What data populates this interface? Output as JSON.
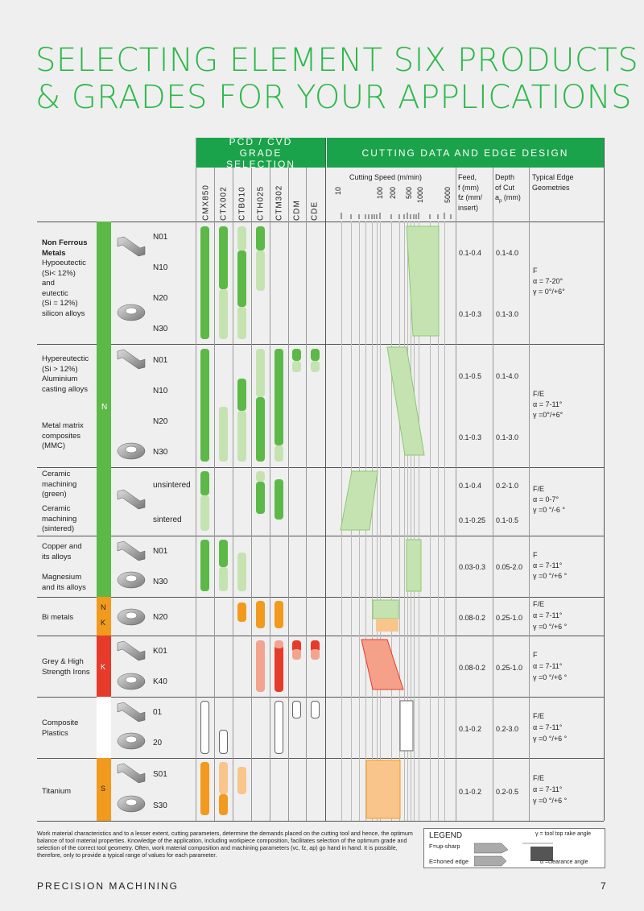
{
  "title_line1": "SELECTING ELEMENT SIX PRODUCTS",
  "title_line2": "& GRADES FOR YOUR APPLICATIONS",
  "header_grade": "PCD / CVD GRADE SELECTION",
  "header_cutting": "CUTTING DATA AND EDGE DESIGN",
  "grades": [
    "CMX850",
    "CTX002",
    "CTB010",
    "CTH025",
    "CTM302",
    "CDM",
    "CDE"
  ],
  "speed_label": "Cutting Speed (m/min)",
  "speed_ticks": [
    "10",
    "100",
    "200",
    "500",
    "1000",
    "5000"
  ],
  "feed_label": [
    "Feed,",
    "f (mm)",
    "fz (mm/",
    "insert)"
  ],
  "depth_label": [
    "Depth",
    "of Cut",
    "a",
    "p",
    " (mm)"
  ],
  "edge_label": [
    "Typical Edge",
    "Geometries"
  ],
  "rows": {
    "r1": {
      "mat": [
        "Non Ferrous",
        "Metals",
        "Hypoeutectic",
        "(Si< 12%)",
        "and",
        "eutectic",
        "(Si = 12%)",
        "silicon alloys"
      ],
      "codes": [
        "N01",
        "N10",
        "N20",
        "N30"
      ],
      "feed": [
        "0.1-0.4",
        "0.1-0.3"
      ],
      "depth": [
        "0.1-4.0",
        "0.1-3.0"
      ],
      "edge": [
        "F",
        "α = 7-20°",
        "γ = 0°/+6°"
      ]
    },
    "r2": {
      "mat1": [
        "Hypereutectic",
        "(Si > 12%)",
        "Aluminium",
        "casting alloys"
      ],
      "mat2": [
        "Metal matrix",
        "composites",
        "(MMC)"
      ],
      "codes": [
        "N01",
        "N10",
        "N20",
        "N30"
      ],
      "feed": [
        "0.1-0.5",
        "0.1-0.3"
      ],
      "depth": [
        "0.1-4.0",
        "0.1-3.0"
      ],
      "edge": [
        "F/E",
        "α = 7-11°",
        "γ =0°/+6°"
      ]
    },
    "r3": {
      "mat1": [
        "Ceramic",
        "machining",
        "(green)"
      ],
      "mat2": [
        "Ceramic",
        "machining",
        "(sintered)"
      ],
      "codes": [
        "unsintered",
        "sintered"
      ],
      "feed": [
        "0.1-0.4",
        "0.1-0.25"
      ],
      "depth": [
        "0.2-1.0",
        "0.1-0.5"
      ],
      "edge": [
        "F/E",
        "α = 0-7°",
        "γ =0 °/-6 °"
      ]
    },
    "r4": {
      "mat1": [
        "Copper and",
        "its alloys"
      ],
      "mat2": [
        "Magnesium",
        "and its alloys"
      ],
      "codes": [
        "N01",
        "N30"
      ],
      "feed": [
        "0.03-0.3"
      ],
      "depth": [
        "0.05-2.0"
      ],
      "edge": [
        "F",
        "α = 7-11°",
        "γ =0 °/+6 °"
      ]
    },
    "r5": {
      "mat": [
        "Bi metals"
      ],
      "codes": [
        "N20"
      ],
      "feed": [
        "0.08-0.2"
      ],
      "depth": [
        "0.25-1.0"
      ],
      "edge": [
        "F/E",
        "α = 7-11°",
        "γ =0 °/+6 °"
      ]
    },
    "r6": {
      "mat": [
        "Grey & High",
        "Strength Irons"
      ],
      "codes": [
        "K01",
        "K40"
      ],
      "feed": [
        "0.08-0.2"
      ],
      "depth": [
        "0.25-1.0"
      ],
      "edge": [
        "F",
        "α = 7-11°",
        "γ =0 °/+6 °"
      ]
    },
    "r7": {
      "mat": [
        "Composite",
        "Plastics"
      ],
      "codes": [
        "01",
        "20"
      ],
      "feed": [
        "0.1-0.2"
      ],
      "depth": [
        "0.2-3.0"
      ],
      "edge": [
        "F/E",
        "α = 7-11°",
        "γ =0 °/+6 °"
      ]
    },
    "r8": {
      "mat": [
        "Titanium"
      ],
      "codes": [
        "S01",
        "S30"
      ],
      "feed": [
        "0.1-0.2"
      ],
      "depth": [
        "0.2-0.5"
      ],
      "edge": [
        "F/E",
        "α = 7-11°",
        "γ =0 °/+6 °"
      ]
    }
  },
  "iso_labels": {
    "n": "N",
    "nk_n": "N",
    "nk_k": "K",
    "k": "K",
    "s": "S"
  },
  "colors": {
    "green": "#2db84a",
    "green_dark": "#5cb947",
    "green_light": "#c5e3b0",
    "orange": "#f29a1e",
    "orange_light": "#f9c58a",
    "red": "#e63a2a",
    "red_light": "#f3a48f"
  },
  "note": "Work material characteristics and to a lesser extent, cutting parameters, determine the demands placed on the cutting tool and hence, the optimum balance of tool material properties. Knowledge of the application, including workpiece composition, facilitates selection of the optimum grade and selection of the correct tool geometry. Often, work material composition and machining parameters (vc, fz, ap) go hand in hand. It is possible, therefore, only to provide a typical range of values for each parameter.",
  "legend": {
    "title": "LEGEND",
    "f": "F=up-sharp",
    "e": "E=honed edge",
    "gamma": "γ = tool top rake angle",
    "alpha": "α =clearance angle"
  },
  "footer": "PRECISION MACHINING",
  "page": "7"
}
